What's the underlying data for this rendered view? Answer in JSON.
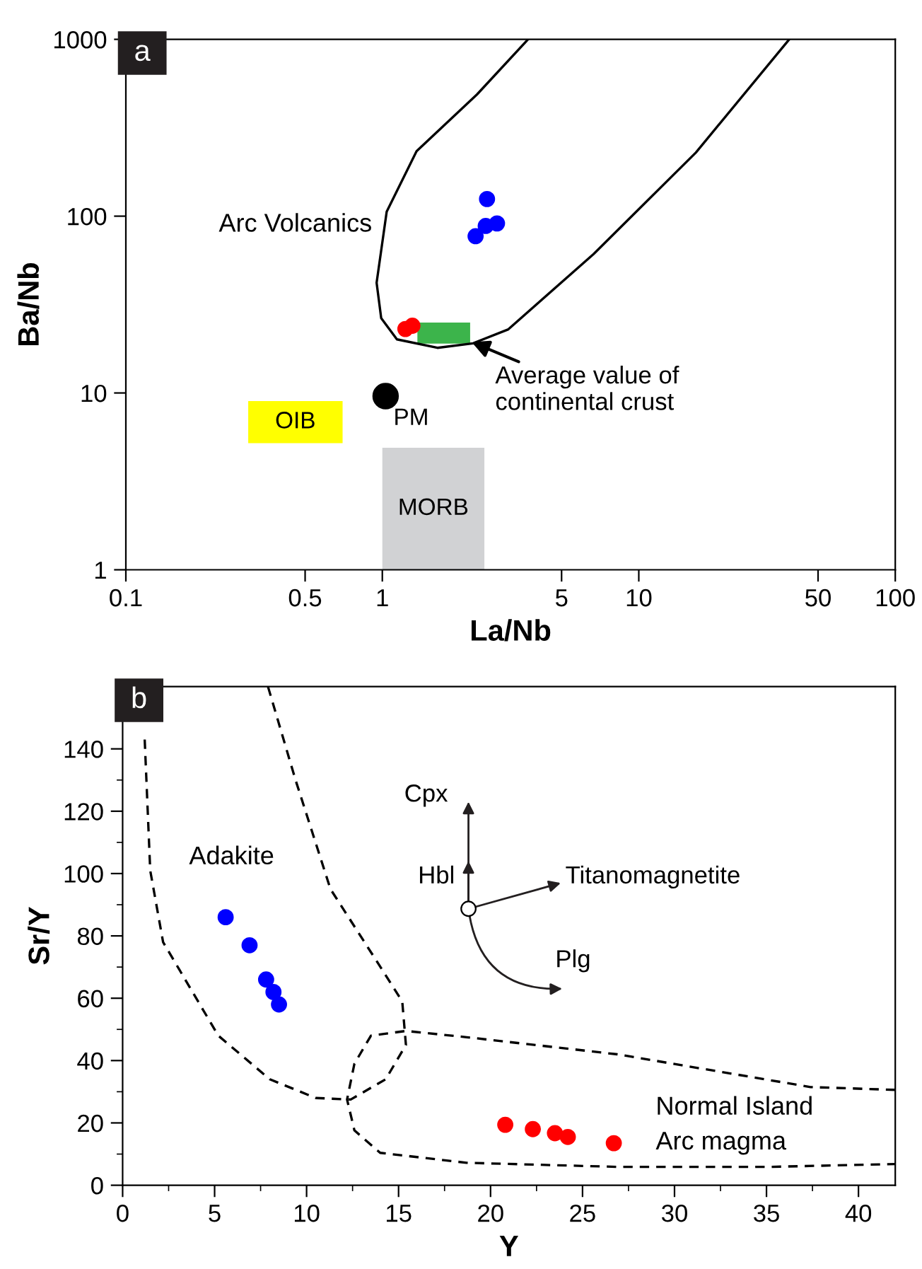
{
  "chart_data": [
    {
      "type": "scatter",
      "title": "a",
      "xlabel": "La/Nb",
      "ylabel": "Ba/Nb",
      "log": "xy",
      "xlim": [
        0.1,
        100
      ],
      "ylim": [
        1,
        1000
      ],
      "xticks": [
        0.1,
        0.5,
        1,
        5,
        10,
        50,
        100
      ],
      "yticks": [
        1,
        10,
        100,
        1000
      ],
      "series": [
        {
          "type": "area",
          "name": "OIB",
          "color": "#ffff00",
          "x": [
            0.3,
            0.7,
            0.7,
            0.3
          ],
          "values": [
            5.2,
            5.2,
            9.0,
            9.0
          ]
        },
        {
          "type": "area",
          "name": "MORB",
          "color": "#d1d2d4",
          "x": [
            1.0,
            2.5,
            2.5,
            1.0
          ],
          "values": [
            1,
            1,
            4.9,
            4.9
          ]
        },
        {
          "type": "area",
          "color": "#3cb44b",
          "x": [
            1.37,
            2.2,
            2.2,
            1.37
          ],
          "values": [
            19,
            19,
            25,
            25
          ]
        },
        {
          "type": "line",
          "name": "Arc Volcanics",
          "color": "#000000",
          "line_style": "solid",
          "x": [
            3.7,
            2.34,
            1.36,
            1.04,
            0.95,
            0.99,
            1.14,
            1.64,
            2.26,
            3.1,
            6.66,
            16.7,
            38.6
          ],
          "values": [
            1000,
            488,
            233,
            106,
            42,
            26.5,
            20.1,
            18,
            19.1,
            22.9,
            61,
            229,
            1000
          ]
        },
        {
          "name": "PM",
          "color": "#000000",
          "marker": "circle",
          "x": [
            1.03
          ],
          "values": [
            9.6
          ]
        },
        {
          "color": "#0000ff",
          "marker": "circle",
          "x": [
            2.56,
            2.53,
            2.8,
            2.31
          ],
          "values": [
            125,
            88,
            91,
            77
          ]
        },
        {
          "color": "#ff0000",
          "marker": "circle",
          "x": [
            1.23,
            1.31
          ],
          "values": [
            23,
            24
          ]
        }
      ],
      "annotations": [
        {
          "text": "Average value of\ncontinental crust",
          "x": 2.23,
          "y": 19.4
        }
      ]
    },
    {
      "type": "scatter",
      "title": "b",
      "xlabel": "Y",
      "ylabel": "Sr/Y",
      "xlim": [
        0,
        42
      ],
      "ylim": [
        0,
        160
      ],
      "xticks": [
        0,
        5,
        10,
        15,
        20,
        25,
        30,
        35,
        40
      ],
      "yticks": [
        0,
        20,
        40,
        60,
        80,
        100,
        120,
        140
      ],
      "series": [
        {
          "color": "#0000ff",
          "marker": "circle",
          "x": [
            5.6,
            6.9,
            7.8,
            8.2,
            8.5
          ],
          "values": [
            86,
            77,
            66,
            62,
            58
          ]
        },
        {
          "color": "#ff0000",
          "marker": "circle",
          "x": [
            20.8,
            22.3,
            23.5,
            24.2,
            26.7
          ],
          "values": [
            19.4,
            18,
            16.7,
            15.5,
            13.5
          ]
        },
        {
          "type": "line",
          "name": "Adakite",
          "color": "#000000",
          "line_style": "dashed",
          "x": [
            1.2,
            1.5,
            2.2,
            3.6,
            5.2,
            8.0,
            10.5,
            12.4,
            14.3,
            15.4,
            15.2,
            13.8,
            11.3,
            9.4,
            7.9
          ],
          "values": [
            143,
            101,
            78,
            64,
            48,
            34,
            28,
            27.5,
            34,
            45,
            59,
            72,
            95,
            130,
            160
          ]
        },
        {
          "type": "line",
          "name": "Normal Island\nArc magma",
          "color": "#000000",
          "line_style": "dashed",
          "x": [
            42,
            37.4,
            26.9,
            18.7,
            15.4,
            13.5,
            12.6,
            12.2,
            12.6,
            14.0,
            18.7,
            26.9,
            35.2,
            42
          ],
          "values": [
            30.6,
            31.5,
            42,
            47.5,
            49.5,
            48,
            39,
            27.5,
            17.6,
            10.4,
            7.2,
            5.9,
            5.9,
            6.8
          ]
        },
        {
          "color": "#ffffff",
          "marker": "circle",
          "x": [
            18.8
          ],
          "values": [
            88.7
          ]
        }
      ],
      "annotations": [
        "Cpx",
        "Hbl",
        "Titanomagnetite",
        "Plg"
      ]
    }
  ]
}
